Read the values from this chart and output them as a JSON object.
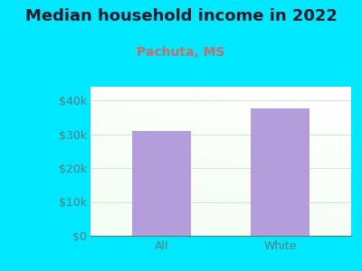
{
  "title": "Median household income in 2022",
  "subtitle": "Pachuta, MS",
  "categories": [
    "All",
    "White"
  ],
  "values": [
    31000,
    37500
  ],
  "bar_color": "#b39ddb",
  "background_color": "#00e8ff",
  "title_color": "#1a1a2e",
  "subtitle_color": "#c07070",
  "tick_color": "#5a7a7a",
  "ylim": [
    0,
    44000
  ],
  "yticks": [
    0,
    10000,
    20000,
    30000,
    40000
  ],
  "ytick_labels": [
    "$0",
    "$10k",
    "$20k",
    "$30k",
    "$40k"
  ],
  "title_fontsize": 13,
  "subtitle_fontsize": 10,
  "tick_fontsize": 9,
  "gradient_colors": [
    "#e8f5e9",
    "#f8fff8",
    "#ffffff"
  ],
  "bar_width": 0.5
}
